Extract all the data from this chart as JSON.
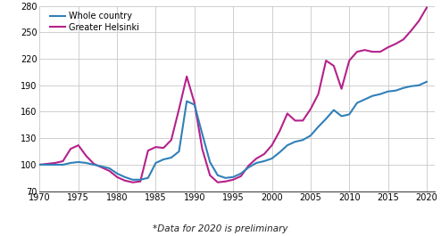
{
  "whole_country_x": [
    1970,
    1971,
    1972,
    1973,
    1974,
    1975,
    1976,
    1977,
    1978,
    1979,
    1980,
    1981,
    1982,
    1983,
    1984,
    1985,
    1986,
    1987,
    1988,
    1989,
    1990,
    1991,
    1992,
    1993,
    1994,
    1995,
    1996,
    1997,
    1998,
    1999,
    2000,
    2001,
    2002,
    2003,
    2004,
    2005,
    2006,
    2007,
    2008,
    2009,
    2010,
    2011,
    2012,
    2013,
    2014,
    2015,
    2016,
    2017,
    2018,
    2019,
    2020
  ],
  "whole_country_y": [
    100,
    100,
    100,
    100,
    102,
    103,
    102,
    100,
    98,
    96,
    90,
    86,
    83,
    83,
    85,
    102,
    106,
    108,
    115,
    172,
    168,
    135,
    103,
    88,
    85,
    86,
    90,
    97,
    102,
    104,
    107,
    114,
    122,
    126,
    128,
    133,
    143,
    152,
    162,
    155,
    157,
    170,
    174,
    178,
    180,
    183,
    184,
    187,
    189,
    190,
    194
  ],
  "greater_helsinki_x": [
    1970,
    1971,
    1972,
    1973,
    1974,
    1975,
    1976,
    1977,
    1978,
    1979,
    1980,
    1981,
    1982,
    1983,
    1984,
    1985,
    1986,
    1987,
    1988,
    1989,
    1990,
    1991,
    1992,
    1993,
    1994,
    1995,
    1996,
    1997,
    1998,
    1999,
    2000,
    2001,
    2002,
    2003,
    2004,
    2005,
    2006,
    2007,
    2008,
    2009,
    2010,
    2011,
    2012,
    2013,
    2014,
    2015,
    2016,
    2017,
    2018,
    2019,
    2020
  ],
  "greater_helsinki_y": [
    100,
    101,
    102,
    104,
    118,
    122,
    110,
    101,
    97,
    93,
    86,
    82,
    80,
    81,
    116,
    120,
    119,
    128,
    163,
    200,
    170,
    118,
    88,
    80,
    81,
    83,
    87,
    99,
    107,
    112,
    122,
    138,
    158,
    150,
    150,
    163,
    180,
    218,
    212,
    186,
    218,
    228,
    230,
    228,
    228,
    233,
    237,
    242,
    252,
    263,
    278
  ],
  "whole_country_color": "#3080b8",
  "greater_helsinki_color": "#b5218a",
  "whole_country_label": "Whole country",
  "greater_helsinki_label": "Greater Helsinki",
  "ylim": [
    70,
    280
  ],
  "xlim": [
    1970,
    2021
  ],
  "yticks": [
    70,
    100,
    130,
    160,
    190,
    220,
    250,
    280
  ],
  "xticks": [
    1970,
    1975,
    1980,
    1985,
    1990,
    1995,
    2000,
    2005,
    2010,
    2015,
    2020
  ],
  "footnote": "*Data for 2020 is preliminary",
  "line_width": 1.5,
  "background_color": "#ffffff",
  "grid_color": "#c8c8c8"
}
